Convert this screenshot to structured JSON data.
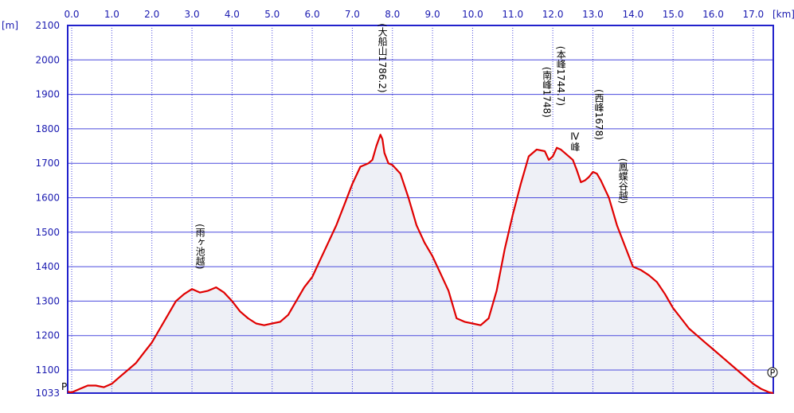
{
  "chart_data": {
    "type": "area",
    "x_unit": "[km]",
    "y_unit": "[m]",
    "xlim": [
      -0.1,
      17.5
    ],
    "ylim": [
      1033,
      2100
    ],
    "x_ticks": [
      0.0,
      1.0,
      2.0,
      3.0,
      4.0,
      5.0,
      6.0,
      7.0,
      8.0,
      9.0,
      10.0,
      11.0,
      12.0,
      13.0,
      14.0,
      15.0,
      16.0,
      17.0
    ],
    "x_tick_labels": [
      "0.0",
      "1.0",
      "2.0",
      "3.0",
      "4.0",
      "5.0",
      "6.0",
      "7.0",
      "8.0",
      "9.0",
      "10.0",
      "11.0",
      "12.0",
      "13.0",
      "14.0",
      "15.0",
      "16.0",
      "17.0"
    ],
    "y_ticks": [
      1100,
      1200,
      1300,
      1400,
      1500,
      1600,
      1700,
      1800,
      1900,
      2000,
      2100
    ],
    "y_tick_labels": [
      "1100",
      "1200",
      "1300",
      "1400",
      "1500",
      "1600",
      "1700",
      "1800",
      "1900",
      "2000",
      "2100"
    ],
    "y_min_label": "1033",
    "grid": true,
    "line_color": "#e00000",
    "axis_color": "#2222cc",
    "grid_color": "#4a4add",
    "fill_color": "#eef0f6",
    "series": [
      {
        "x": [
          -0.1,
          0.0,
          0.2,
          0.4,
          0.6,
          0.8,
          1.0,
          1.2,
          1.4,
          1.6,
          1.8,
          2.0,
          2.2,
          2.4,
          2.6,
          2.8,
          3.0,
          3.2,
          3.4,
          3.6,
          3.8,
          4.0,
          4.2,
          4.4,
          4.6,
          4.8,
          5.0,
          5.2,
          5.4,
          5.6,
          5.8,
          6.0,
          6.2,
          6.4,
          6.6,
          6.8,
          7.0,
          7.2,
          7.4,
          7.5,
          7.6,
          7.7,
          7.75,
          7.8,
          7.9,
          8.0,
          8.2,
          8.4,
          8.6,
          8.8,
          9.0,
          9.2,
          9.4,
          9.6,
          9.8,
          10.0,
          10.2,
          10.4,
          10.6,
          10.8,
          11.0,
          11.2,
          11.4,
          11.6,
          11.8,
          11.9,
          12.0,
          12.1,
          12.2,
          12.3,
          12.5,
          12.6,
          12.7,
          12.8,
          12.9,
          13.0,
          13.1,
          13.2,
          13.4,
          13.6,
          13.8,
          14.0,
          14.2,
          14.4,
          14.6,
          14.8,
          15.0,
          15.2,
          15.4,
          15.6,
          15.8,
          16.0,
          16.2,
          16.4,
          16.6,
          16.8,
          17.0,
          17.2,
          17.4,
          17.5
        ],
        "y": [
          1037,
          1035,
          1045,
          1055,
          1055,
          1050,
          1060,
          1080,
          1100,
          1120,
          1150,
          1180,
          1220,
          1260,
          1300,
          1320,
          1335,
          1325,
          1330,
          1340,
          1325,
          1300,
          1270,
          1250,
          1235,
          1230,
          1235,
          1240,
          1260,
          1300,
          1340,
          1370,
          1420,
          1470,
          1520,
          1580,
          1640,
          1690,
          1700,
          1710,
          1750,
          1783,
          1770,
          1730,
          1700,
          1695,
          1670,
          1600,
          1520,
          1470,
          1430,
          1380,
          1330,
          1250,
          1240,
          1235,
          1230,
          1250,
          1330,
          1450,
          1550,
          1640,
          1720,
          1740,
          1735,
          1710,
          1720,
          1745,
          1740,
          1730,
          1710,
          1680,
          1645,
          1650,
          1660,
          1675,
          1670,
          1650,
          1600,
          1520,
          1460,
          1400,
          1390,
          1375,
          1355,
          1320,
          1280,
          1250,
          1220,
          1200,
          1180,
          1160,
          1140,
          1120,
          1100,
          1080,
          1060,
          1045,
          1035,
          1033
        ]
      }
    ],
    "annotations": [
      {
        "text": "(雨ヶ池越)",
        "x": 3.2,
        "y": 1340
      },
      {
        "text": "(大船山1786.2)",
        "x": 7.75,
        "y": 1783
      },
      {
        "text": "(南峰1748)",
        "x": 11.85,
        "y": 1740
      },
      {
        "text": "(本峰1744.7)",
        "x": 12.2,
        "y": 1745
      },
      {
        "text": "Ⅳ峰",
        "x": 12.55,
        "y": 1720
      },
      {
        "text": "(西峰1678)",
        "x": 13.15,
        "y": 1675
      },
      {
        "text": "(鳳蝶谷越)",
        "x": 13.75,
        "y": 1530
      }
    ],
    "start_marker": "P",
    "end_marker": "P"
  }
}
